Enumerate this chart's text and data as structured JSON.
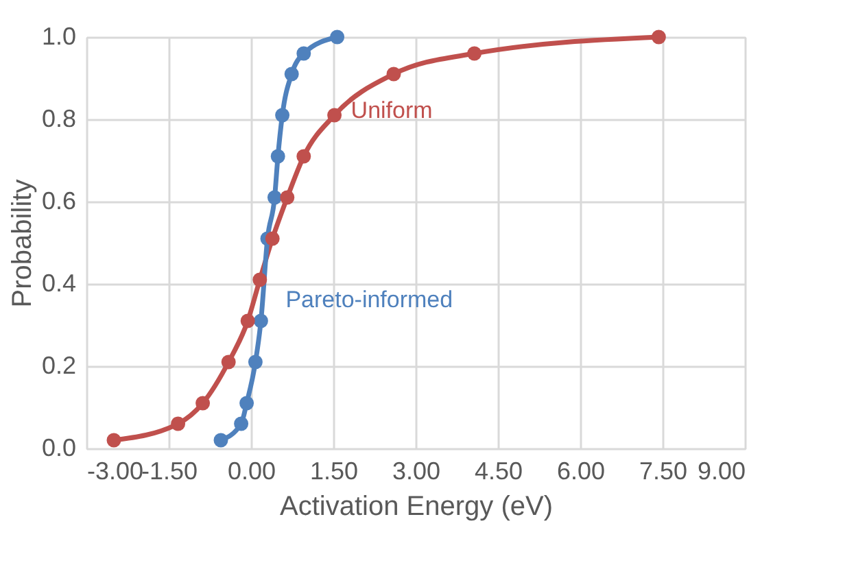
{
  "chart_data": {
    "type": "line",
    "xlabel": "Activation Energy (eV)",
    "ylabel": "Probability",
    "xlim": [
      -3,
      9
    ],
    "xticks": [
      {
        "value": -3,
        "label": "-3.00"
      },
      {
        "value": -1.5,
        "label": "-1.50"
      },
      {
        "value": 0,
        "label": "0.00"
      },
      {
        "value": 1.5,
        "label": "1.50"
      },
      {
        "value": 3,
        "label": "3.00"
      },
      {
        "value": 4.5,
        "label": "4.50"
      },
      {
        "value": 6,
        "label": "6.00"
      },
      {
        "value": 7.5,
        "label": "7.50"
      },
      {
        "value": 9,
        "label": "9.00"
      }
    ],
    "ylim": [
      0,
      1
    ],
    "yticks": [
      {
        "value": 0,
        "label": "0.0"
      },
      {
        "value": 0.2,
        "label": "0.2"
      },
      {
        "value": 0.4,
        "label": "0.4"
      },
      {
        "value": 0.6,
        "label": "0.6"
      },
      {
        "value": 0.8,
        "label": "0.8"
      },
      {
        "value": 1,
        "label": "1.0"
      }
    ],
    "grid": true,
    "legend": false,
    "marker": "circle",
    "line_style": "solid",
    "series": [
      {
        "name": "Uniform",
        "color": "#c0504d",
        "x": [
          -2.5,
          -1.33,
          -0.88,
          -0.41,
          -0.06,
          0.16,
          0.39,
          0.66,
          0.96,
          1.52,
          2.6,
          4.07,
          7.43
        ],
        "values": [
          0.02,
          0.06,
          0.11,
          0.21,
          0.31,
          0.41,
          0.51,
          0.61,
          0.71,
          0.81,
          0.91,
          0.96,
          1.0
        ]
      },
      {
        "name": "Pareto-informed",
        "color": "#4f81bd",
        "x": [
          -0.55,
          -0.18,
          -0.08,
          0.08,
          0.18,
          0.3,
          0.43,
          0.49,
          0.57,
          0.74,
          0.96,
          1.57
        ],
        "values": [
          0.02,
          0.06,
          0.11,
          0.21,
          0.31,
          0.51,
          0.61,
          0.71,
          0.81,
          0.91,
          0.96,
          1.0
        ]
      }
    ]
  }
}
